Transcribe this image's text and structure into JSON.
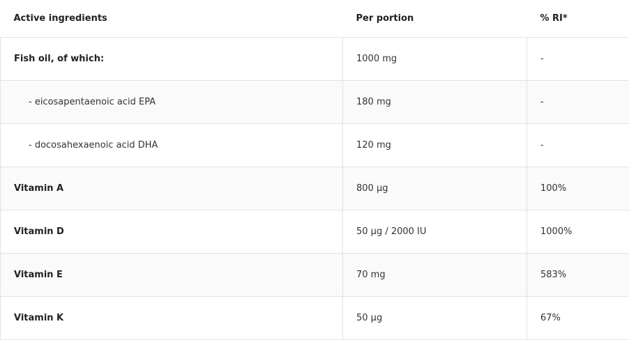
{
  "headers": [
    "Active ingredients",
    "Per portion",
    "% RI*"
  ],
  "rows": [
    {
      "name": "Fish oil, of which:",
      "portion": "1000 mg",
      "ri": "-"
    },
    {
      "name": "- eicosapentaenoic acid EPA",
      "portion": "180 mg",
      "ri": "-"
    },
    {
      "name": "- docosahexaenoic acid DHA",
      "portion": "120 mg",
      "ri": "-"
    },
    {
      "name": "Vitamin A",
      "portion": "800 µg",
      "ri": "100%"
    },
    {
      "name": "Vitamin D",
      "portion": "50 µg / 2000 IU",
      "ri": "1000%"
    },
    {
      "name": "Vitamin E",
      "portion": "70 mg",
      "ri": "583%"
    },
    {
      "name": "Vitamin K",
      "portion": "50 µg",
      "ri": "67%"
    }
  ]
}
